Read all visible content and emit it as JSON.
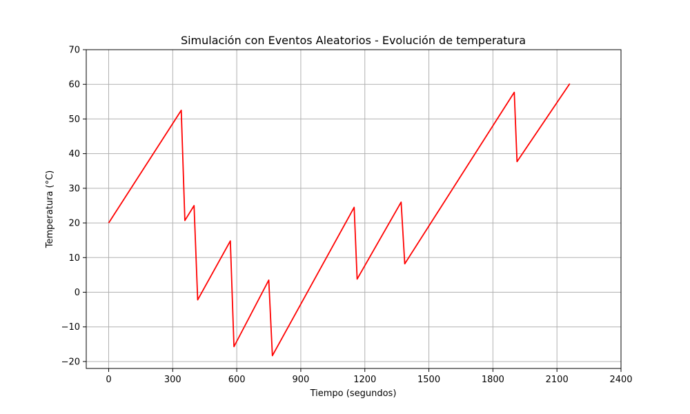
{
  "chart_data": {
    "type": "line",
    "title": "Simulación con Eventos Aleatorios - Evolución de temperatura",
    "xlabel": "Tiempo (segundos)",
    "ylabel": "Temperatura (°C)",
    "xlim": [
      -105,
      2400
    ],
    "ylim": [
      -22,
      70
    ],
    "x_ticks": [
      "0",
      "300",
      "600",
      "900",
      "1200",
      "1500",
      "1800",
      "2100",
      "2400"
    ],
    "y_ticks": [
      "−20",
      "−10",
      "0",
      "10",
      "20",
      "30",
      "40",
      "50",
      "60",
      "70"
    ],
    "grid": true,
    "series": [
      {
        "color": "#ff0000",
        "x": [
          0,
          340,
          357,
          400,
          417,
          570,
          587,
          750,
          767,
          1150,
          1164,
          1370,
          1387,
          1900,
          1913,
          2160
        ],
        "y": [
          20,
          52.5,
          20.7,
          25,
          -2.2,
          14.8,
          -15.7,
          3.5,
          -18.3,
          24.5,
          3.8,
          26,
          8.2,
          57.7,
          37.7,
          60.2
        ]
      }
    ]
  }
}
